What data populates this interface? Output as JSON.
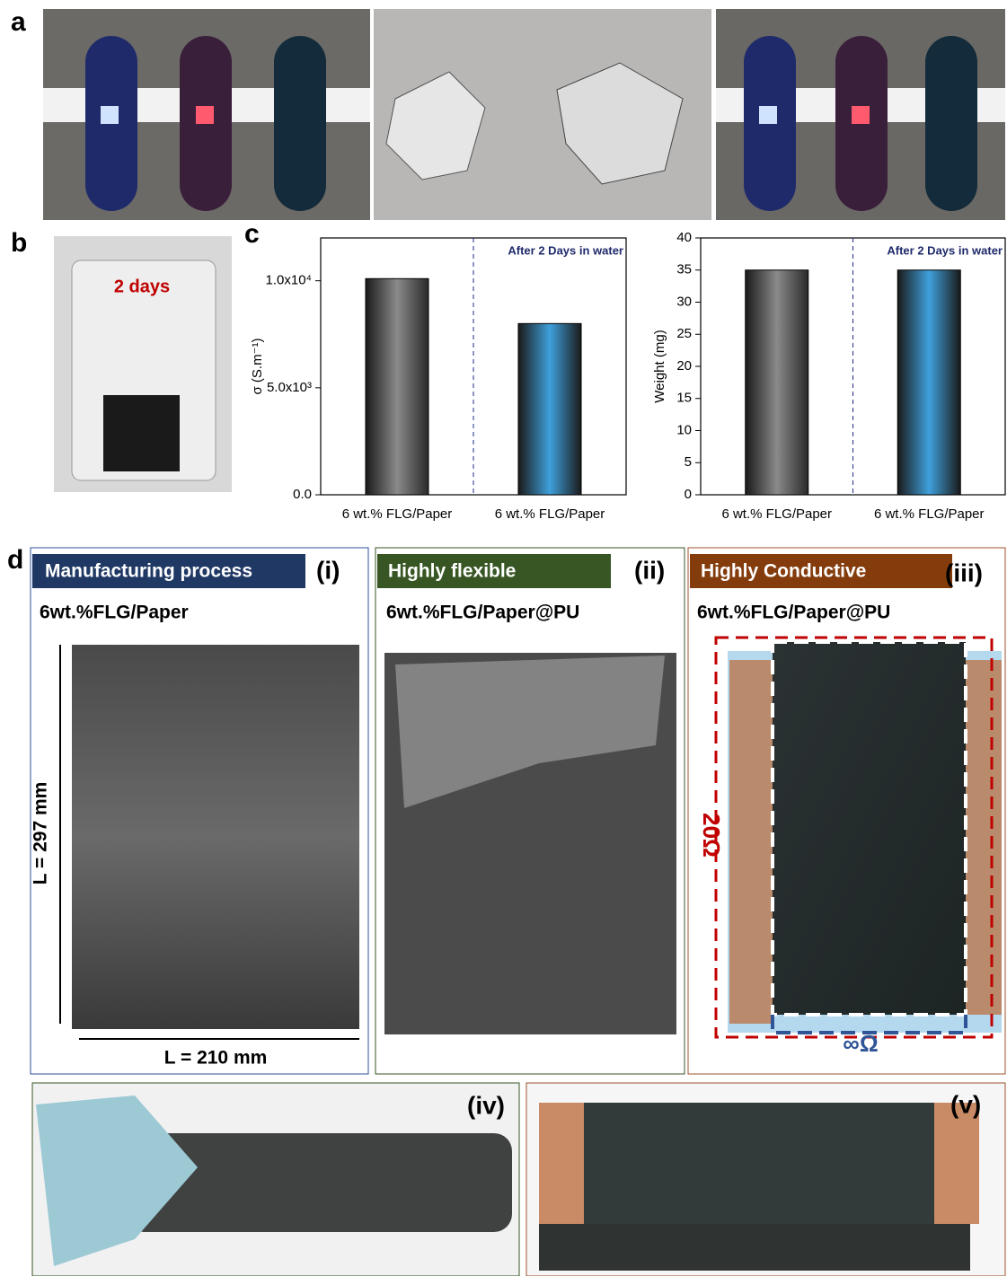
{
  "panel_letters": [
    "a",
    "b",
    "c",
    "d"
  ],
  "photo_b_label": "2 days",
  "chart_data": [
    {
      "type": "bar",
      "y_label": "σ (S.m⁻¹)",
      "annotation": "After 2 Days in water",
      "categories": [
        "6 wt.% FLG/Paper",
        "6 wt.% FLG/Paper"
      ],
      "values": [
        10100,
        8000
      ],
      "colors": [
        "#8a8a8a",
        "#3fa0dc"
      ],
      "ylim": [
        0,
        12000
      ],
      "yticks": [
        {
          "value": 0,
          "label": "0.0"
        },
        {
          "value": 5000,
          "label": "5.0x10³"
        },
        {
          "value": 10000,
          "label": "1.0x10⁴"
        }
      ]
    },
    {
      "type": "bar",
      "y_label": "Weight (mg)",
      "annotation": "After 2 Days in water",
      "categories": [
        "6 wt.% FLG/Paper",
        "6 wt.% FLG/Paper"
      ],
      "values": [
        35,
        35
      ],
      "colors": [
        "#8a8a8a",
        "#3fa0dc"
      ],
      "ylim": [
        0,
        40
      ],
      "yticks": [
        0,
        5,
        10,
        15,
        20,
        25,
        30,
        35,
        40
      ]
    }
  ],
  "panel_d": [
    {
      "header": "Manufacturing process",
      "tag": "(i)",
      "subtitle": "6wt.%FLG/Paper",
      "height_label": "L = 297 mm",
      "width_label": "L = 210 mm"
    },
    {
      "header": "Highly flexible",
      "tag": "(ii)",
      "subtitle": "6wt.%FLG/Paper@PU"
    },
    {
      "header": "Highly Conductive",
      "tag": "(iii)",
      "subtitle": "6wt.%FLG/Paper@PU",
      "long_resistance": "20Ω",
      "short_resistance": "∞Ω"
    }
  ],
  "bottom_tags": [
    "(iv)",
    "(v)"
  ]
}
